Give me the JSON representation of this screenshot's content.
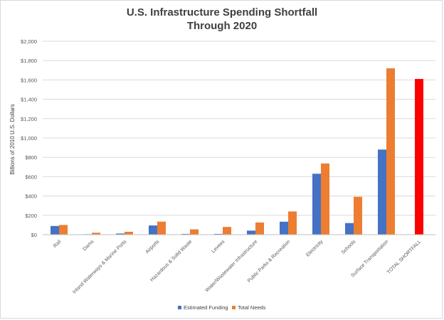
{
  "chart_data": {
    "type": "bar",
    "title_line1": "U.S. Infrastructure Spending Shortfall",
    "title_line2": "Through 2020",
    "ylabel": "Billions of 2010 U.S. Dollars",
    "ylim": [
      0,
      2000
    ],
    "yticks": [
      0,
      200,
      400,
      600,
      800,
      1000,
      1200,
      1400,
      1600,
      1800,
      2000
    ],
    "ytick_labels": [
      "$0",
      "$200",
      "$400",
      "$600",
      "$800",
      "$1,000",
      "$1,200",
      "$1,400",
      "$1,600",
      "$1,800",
      "$2,000"
    ],
    "grid": true,
    "legend_position": "bottom",
    "categories": [
      "Rail",
      "Dams",
      "Inland Waterways & Marine Ports",
      "Airports",
      "Hazardous & Solid Waste",
      "Levees",
      "Water/Wastewater Infrastructure",
      "Public Parks & Recreation",
      "Electricity",
      "Schools",
      "Surface Transportation",
      "TOTAL SHORTFALL"
    ],
    "series": [
      {
        "name": "Estimated Funding",
        "color": "#4472C4",
        "values": [
          90,
          5,
          12,
          95,
          8,
          8,
          42,
          134,
          630,
          120,
          880,
          null
        ]
      },
      {
        "name": "Total Needs",
        "color": "#ED7D31",
        "values": [
          100,
          20,
          30,
          135,
          55,
          80,
          126,
          240,
          736,
          392,
          1720,
          null
        ]
      }
    ],
    "total_shortfall": {
      "value": 1610,
      "color": "#FF0000"
    }
  }
}
